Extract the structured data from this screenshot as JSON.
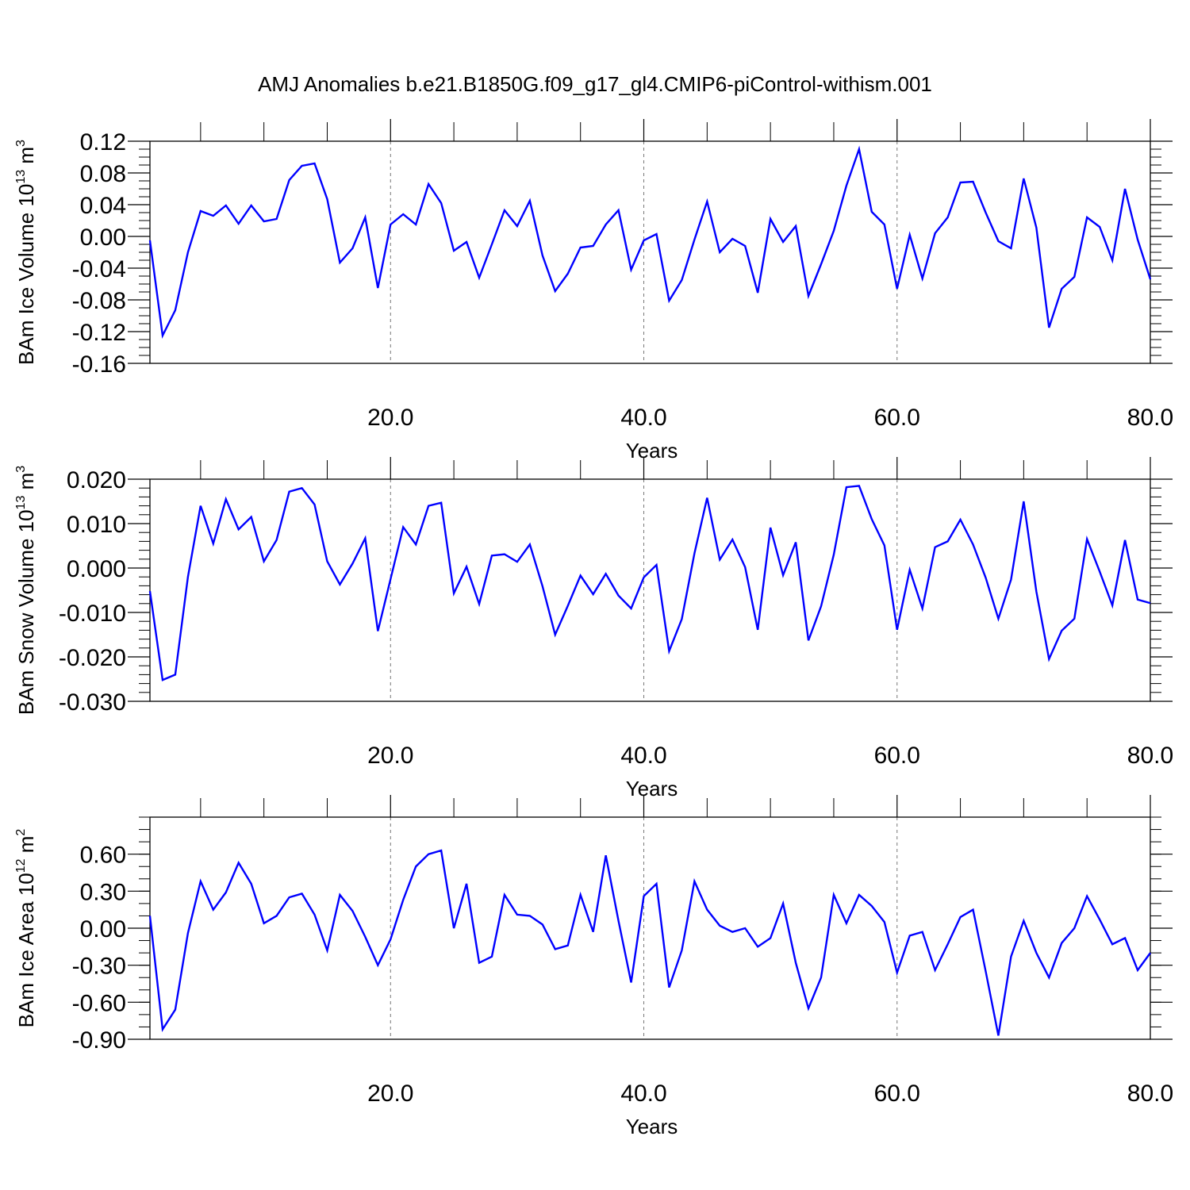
{
  "title": "AMJ Anomalies b.e21.B1850G.f09_g17_gl4.CMIP6-piControl-withism.001",
  "line_color": "#0000ff",
  "chart_data": [
    {
      "type": "line",
      "ylabel": "BAm Ice Volume 10",
      "ylabel_exp": "13",
      "ylabel_unit": " m",
      "ylabel_unit_exp": "3",
      "xlabel": "Years",
      "xlim": [
        1,
        80
      ],
      "ylim": [
        -0.16,
        0.12
      ],
      "yticks": [
        -0.16,
        -0.12,
        -0.08,
        -0.04,
        0.0,
        0.04,
        0.08,
        0.12
      ],
      "ytick_labels": [
        "-0.16",
        "-0.12",
        "-0.08",
        "-0.04",
        "0.00",
        "0.04",
        "0.08",
        "0.12"
      ],
      "yminor": 0.01,
      "xticks": [
        20,
        40,
        60,
        80
      ],
      "xtick_labels": [
        "20.0",
        "40.0",
        "60.0",
        "80.0"
      ],
      "xminor": 5,
      "grid_x": [
        20,
        40,
        60
      ],
      "x": [
        1,
        2,
        3,
        4,
        5,
        6,
        7,
        8,
        9,
        10,
        11,
        12,
        13,
        14,
        15,
        16,
        17,
        18,
        19,
        20,
        21,
        22,
        23,
        24,
        25,
        26,
        27,
        28,
        29,
        30,
        31,
        32,
        33,
        34,
        35,
        36,
        37,
        38,
        39,
        40,
        41,
        42,
        43,
        44,
        45,
        46,
        47,
        48,
        49,
        50,
        51,
        52,
        53,
        54,
        55,
        56,
        57,
        58,
        59,
        60,
        61,
        62,
        63,
        64,
        65,
        66,
        67,
        68,
        69,
        70,
        71,
        72,
        73,
        74,
        75,
        76,
        77,
        78,
        79,
        80
      ],
      "values": [
        -0.005,
        -0.125,
        -0.093,
        -0.02,
        0.032,
        0.026,
        0.039,
        0.016,
        0.039,
        0.019,
        0.022,
        0.071,
        0.089,
        0.092,
        0.047,
        -0.033,
        -0.015,
        0.024,
        -0.065,
        0.015,
        0.028,
        0.015,
        0.066,
        0.042,
        -0.018,
        -0.007,
        -0.052,
        -0.01,
        0.033,
        0.013,
        0.045,
        -0.024,
        -0.069,
        -0.047,
        -0.014,
        -0.012,
        0.015,
        0.033,
        -0.042,
        -0.005,
        0.003,
        -0.081,
        -0.055,
        -0.004,
        0.044,
        -0.02,
        -0.003,
        -0.012,
        -0.071,
        0.022,
        -0.007,
        0.013,
        -0.075,
        -0.035,
        0.007,
        0.064,
        0.11,
        0.031,
        0.015,
        -0.066,
        0.002,
        -0.053,
        0.004,
        0.024,
        0.068,
        0.069,
        0.03,
        -0.006,
        -0.015,
        0.073,
        0.011,
        -0.115,
        -0.066,
        -0.051,
        0.024,
        0.012,
        -0.03,
        0.06,
        -0.004,
        -0.054
      ]
    },
    {
      "type": "line",
      "ylabel": "BAm Snow Volume 10",
      "ylabel_exp": "13",
      "ylabel_unit": " m",
      "ylabel_unit_exp": "3",
      "xlabel": "Years",
      "xlim": [
        1,
        80
      ],
      "ylim": [
        -0.03,
        0.02
      ],
      "yticks": [
        -0.03,
        -0.02,
        -0.01,
        0.0,
        0.01,
        0.02
      ],
      "ytick_labels": [
        "-0.030",
        "-0.020",
        "-0.010",
        "0.000",
        "0.010",
        "0.020"
      ],
      "yminor": 0.002,
      "xticks": [
        20,
        40,
        60,
        80
      ],
      "xtick_labels": [
        "20.0",
        "40.0",
        "60.0",
        "80.0"
      ],
      "xminor": 5,
      "grid_x": [
        20,
        40,
        60
      ],
      "x": [
        1,
        2,
        3,
        4,
        5,
        6,
        7,
        8,
        9,
        10,
        11,
        12,
        13,
        14,
        15,
        16,
        17,
        18,
        19,
        20,
        21,
        22,
        23,
        24,
        25,
        26,
        27,
        28,
        29,
        30,
        31,
        32,
        33,
        34,
        35,
        36,
        37,
        38,
        39,
        40,
        41,
        42,
        43,
        44,
        45,
        46,
        47,
        48,
        49,
        50,
        51,
        52,
        53,
        54,
        55,
        56,
        57,
        58,
        59,
        60,
        61,
        62,
        63,
        64,
        65,
        66,
        67,
        68,
        69,
        70,
        71,
        72,
        73,
        74,
        75,
        76,
        77,
        78,
        79,
        80
      ],
      "values": [
        -0.0052,
        -0.0252,
        -0.024,
        -0.002,
        0.014,
        0.0055,
        0.0155,
        0.0087,
        0.0115,
        0.0015,
        0.0063,
        0.0172,
        0.018,
        0.0143,
        0.0015,
        -0.0037,
        0.001,
        0.0067,
        -0.0142,
        -0.0025,
        0.0092,
        0.0053,
        0.014,
        0.0147,
        -0.0057,
        0.0003,
        -0.0081,
        0.0028,
        0.0031,
        0.0014,
        0.0053,
        -0.0041,
        -0.015,
        -0.0085,
        -0.0017,
        -0.0059,
        -0.0013,
        -0.0062,
        -0.0091,
        -0.0021,
        0.0007,
        -0.0187,
        -0.0115,
        0.0033,
        0.0158,
        0.0019,
        0.0064,
        0.0002,
        -0.0139,
        0.0091,
        -0.0016,
        0.0058,
        -0.0163,
        -0.0086,
        0.003,
        0.0182,
        0.0185,
        0.011,
        0.0051,
        -0.0139,
        -0.0004,
        -0.0091,
        0.0047,
        0.006,
        0.0109,
        0.0053,
        -0.0022,
        -0.0114,
        -0.0026,
        0.015,
        -0.0053,
        -0.0205,
        -0.0141,
        -0.0114,
        0.0065,
        -0.0008,
        -0.0084,
        0.0063,
        -0.0071,
        -0.0079
      ]
    },
    {
      "type": "line",
      "ylabel": "BAm Ice Area 10",
      "ylabel_exp": "12",
      "ylabel_unit": " m",
      "ylabel_unit_exp": "2",
      "xlabel": "Years",
      "xlim": [
        1,
        80
      ],
      "ylim": [
        -0.9,
        0.9
      ],
      "yticks": [
        -0.9,
        -0.6,
        -0.3,
        0.0,
        0.3,
        0.6
      ],
      "ytick_labels": [
        "-0.90",
        "-0.60",
        "-0.30",
        "0.00",
        "0.30",
        "0.60"
      ],
      "yminor": 0.1,
      "xticks": [
        20,
        40,
        60,
        80
      ],
      "xtick_labels": [
        "20.0",
        "40.0",
        "60.0",
        "80.0"
      ],
      "xminor": 5,
      "grid_x": [
        20,
        40,
        60
      ],
      "x": [
        1,
        2,
        3,
        4,
        5,
        6,
        7,
        8,
        9,
        10,
        11,
        12,
        13,
        14,
        15,
        16,
        17,
        18,
        19,
        20,
        21,
        22,
        23,
        24,
        25,
        26,
        27,
        28,
        29,
        30,
        31,
        32,
        33,
        34,
        35,
        36,
        37,
        38,
        39,
        40,
        41,
        42,
        43,
        44,
        45,
        46,
        47,
        48,
        49,
        50,
        51,
        52,
        53,
        54,
        55,
        56,
        57,
        58,
        59,
        60,
        61,
        62,
        63,
        64,
        65,
        66,
        67,
        68,
        69,
        70,
        71,
        72,
        73,
        74,
        75,
        76,
        77,
        78,
        79,
        80
      ],
      "values": [
        0.1,
        -0.82,
        -0.66,
        -0.04,
        0.38,
        0.15,
        0.29,
        0.53,
        0.36,
        0.04,
        0.1,
        0.25,
        0.28,
        0.11,
        -0.18,
        0.27,
        0.14,
        -0.07,
        -0.3,
        -0.09,
        0.23,
        0.5,
        0.6,
        0.63,
        0.0,
        0.36,
        -0.28,
        -0.23,
        0.27,
        0.11,
        0.1,
        0.03,
        -0.17,
        -0.14,
        0.27,
        -0.03,
        0.59,
        0.06,
        -0.44,
        0.26,
        0.36,
        -0.48,
        -0.18,
        0.38,
        0.15,
        0.02,
        -0.03,
        0.0,
        -0.15,
        -0.08,
        0.2,
        -0.28,
        -0.65,
        -0.4,
        0.27,
        0.04,
        0.27,
        0.18,
        0.05,
        -0.36,
        -0.06,
        -0.03,
        -0.34,
        -0.13,
        0.09,
        0.15,
        -0.35,
        -0.87,
        -0.23,
        0.06,
        -0.2,
        -0.4,
        -0.12,
        0.0,
        0.26,
        0.07,
        -0.13,
        -0.08,
        -0.34,
        -0.2
      ]
    }
  ]
}
